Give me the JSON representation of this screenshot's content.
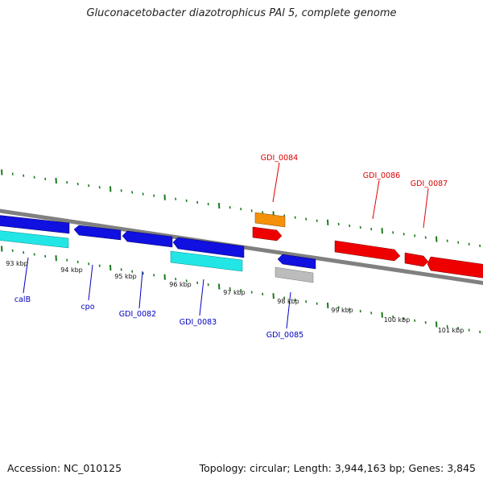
{
  "title": "Gluconacetobacter diazotrophicus PAl 5, complete genome",
  "footer": {
    "accession": "Accession: NC_010125",
    "summary": "Topology: circular; Length: 3,944,163 bp; Genes: 3,845"
  },
  "colors": {
    "backbone": "#808080",
    "tick": "#1a7a1a",
    "blue_gene": "#1010e0",
    "cyan_gene": "#22e6e6",
    "red_gene": "#ee0000",
    "orange_gene": "#f5900a",
    "gray_gene": "#bcbcbc",
    "forward_label": "#dd0000",
    "reverse_label": "#0000c0"
  },
  "scale_labels": [
    "93 kbp",
    "94 kbp",
    "95 kbp",
    "96 kbp",
    "97 kbp",
    "98 kbp",
    "99 kbp",
    "100 kbp",
    "101 kbp"
  ],
  "forward_labels": [
    "GDI_0084",
    "GDI_0086",
    "GDI_0087"
  ],
  "reverse_labels": [
    "calB",
    "cpo",
    "GDI_0082",
    "GDI_0083",
    "GDI_0085"
  ]
}
